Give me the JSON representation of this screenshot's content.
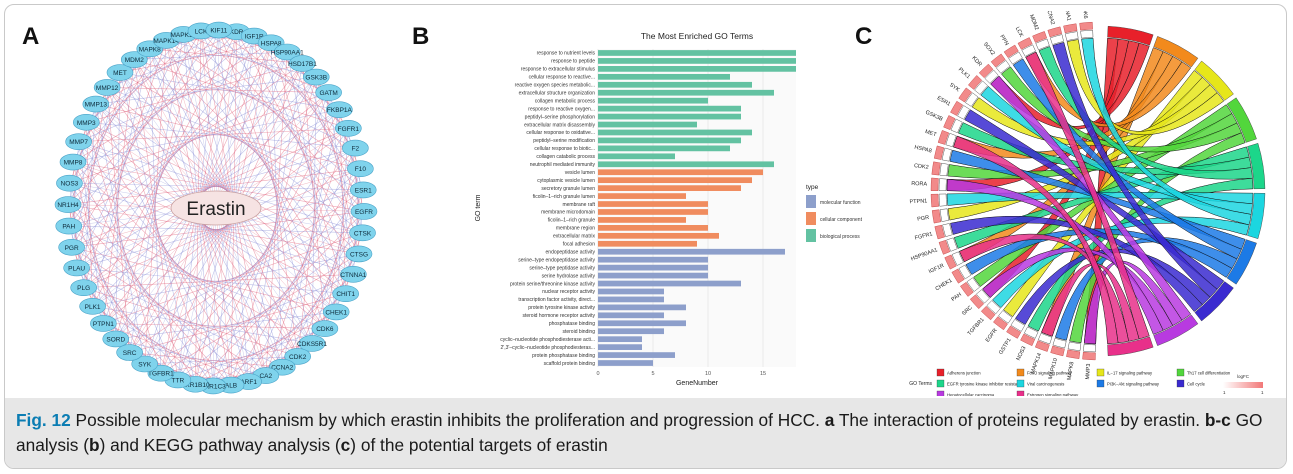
{
  "panels": {
    "a_label": "A",
    "b_label": "B",
    "c_label": "C"
  },
  "network": {
    "center": "Erastin",
    "nodes": [
      "KDR",
      "IGF1R",
      "HSPA8",
      "HSP90AA1",
      "HSD17B1",
      "GSK3B",
      "GATM",
      "FKBP1A",
      "FGFR1",
      "F2",
      "F10",
      "ESR1",
      "EGFR",
      "CTSK",
      "CTSG",
      "CTNNA1",
      "CHIT1",
      "CHEK1",
      "CDK6",
      "CDKS5R1",
      "CDK2",
      "CCNA2",
      "CA2",
      "ARF1",
      "ALB",
      "AKR1C3",
      "AKR1B10",
      "TTR",
      "TGFBR1",
      "SYK",
      "SRC",
      "SORD",
      "PTPN1",
      "PLK1",
      "PLG",
      "PLAU",
      "PGR",
      "PAH",
      "NR1H4",
      "NOS3",
      "MMP8",
      "MMP7",
      "MMP3",
      "MMP13",
      "MMP12",
      "MET",
      "MDM2",
      "MAPK8",
      "MAPK14",
      "MAPK10",
      "LCK",
      "KIF11"
    ],
    "node_color": "#7fd3ec",
    "node_border": "#4aa3c8",
    "center_color": "#f6e3e3",
    "edge_colors": [
      "#e0607a",
      "#8a8ed6"
    ]
  },
  "chart_data": {
    "type": "bar",
    "orientation": "horizontal",
    "title": "The Most Enriched GO Terms",
    "xlabel": "GeneNumber",
    "ylabel": "GO term",
    "xlim": [
      0,
      18
    ],
    "xticks": [
      0,
      5,
      10,
      15
    ],
    "grid": true,
    "legend": {
      "title": "type",
      "placement": "right",
      "entries": [
        {
          "name": "molecular function",
          "color": "#8d9fcb"
        },
        {
          "name": "cellular component",
          "color": "#f08c5f"
        },
        {
          "name": "biological process",
          "color": "#63c2a2"
        }
      ]
    },
    "categories": [
      "response to nutrient levels",
      "response to peptide",
      "response to extracellular stimulus",
      "cellular response to reactive...",
      "reactive oxygen species metabolic...",
      "extracellular structure organization",
      "collagen metabolic process",
      "response to reactive oxygen...",
      "peptidyl–serine phosphorylation",
      "extracellular matrix disassembly",
      "cellular response to oxidative...",
      "peptidyl–serine modification",
      "cellular response to biotic...",
      "collagen catabolic process",
      "neutrophil mediated immunity",
      "vesicle lumen",
      "cytoplasmic vesicle lumen",
      "secretory granule lumen",
      "ficolin–1–rich granule lumen",
      "membrane raft",
      "membrane microdomain",
      "ficolin–1–rich granule",
      "membrane region",
      "extracellular matrix",
      "focal adhesion",
      "endopeptidase activity",
      "serine–type endopeptidase activity",
      "serine–type peptidase activity",
      "serine hydrolase activity",
      "protein serine/threonine kinase activity",
      "nuclear receptor activity",
      "transcription factor activity, direct...",
      "protein tyrosine kinase activity",
      "steroid hormone receptor activity",
      "phosphatase binding",
      "steroid binding",
      "cyclic–nucleotide phosphodiesterase acti...",
      "2',3'–cyclic–nucleotide phosphodiesteras...",
      "protein phosphatase binding",
      "scaffold protein binding"
    ],
    "values": [
      18,
      18,
      18,
      12,
      14,
      16,
      10,
      13,
      13,
      9,
      14,
      13,
      12,
      7,
      16,
      15,
      14,
      13,
      8,
      10,
      10,
      8,
      10,
      11,
      9,
      17,
      10,
      10,
      10,
      13,
      6,
      6,
      8,
      6,
      8,
      6,
      4,
      4,
      7,
      5
    ],
    "types": [
      "biological process",
      "biological process",
      "biological process",
      "biological process",
      "biological process",
      "biological process",
      "biological process",
      "biological process",
      "biological process",
      "biological process",
      "biological process",
      "biological process",
      "biological process",
      "biological process",
      "biological process",
      "cellular component",
      "cellular component",
      "cellular component",
      "cellular component",
      "cellular component",
      "cellular component",
      "cellular component",
      "cellular component",
      "cellular component",
      "cellular component",
      "molecular function",
      "molecular function",
      "molecular function",
      "molecular function",
      "molecular function",
      "molecular function",
      "molecular function",
      "molecular function",
      "molecular function",
      "molecular function",
      "molecular function",
      "molecular function",
      "molecular function",
      "molecular function",
      "molecular function"
    ]
  },
  "chord": {
    "genes": [
      "MMP3",
      "MAPK8",
      "MAPK10",
      "MAPK14",
      "NOS3",
      "GSTP1",
      "EGFR",
      "TGFBR1",
      "SRC",
      "PAH",
      "CHEK1",
      "IGF1R",
      "HSP90AA1",
      "FGFR1",
      "PGR",
      "PTPN1",
      "RORA",
      "CDK2",
      "HSPA8",
      "MET",
      "GSK3B",
      "ESR1",
      "SYK",
      "PLK1",
      "KDR",
      "SOX2",
      "PPN",
      "LCK",
      "MDM2",
      "CCNA2",
      "CTNNA1",
      "CDK6"
    ],
    "pathways": [
      {
        "name": "Adherens junction",
        "color": "#e8202a"
      },
      {
        "name": "FoxO signaling pathway",
        "color": "#f28a1c"
      },
      {
        "name": "IL−17 signaling pathway",
        "color": "#e6e61a"
      },
      {
        "name": "Th17 cell differentiation",
        "color": "#52d63c"
      },
      {
        "name": "EGFR tyrosine kinase inhibitor resistance",
        "color": "#1cd68a"
      },
      {
        "name": "Viral carcinogenesis",
        "color": "#1cd6e0"
      },
      {
        "name": "PI3K−Akt signaling pathway",
        "color": "#1c7ae6"
      },
      {
        "name": "Cell cycle",
        "color": "#3a2ad0"
      },
      {
        "name": "Hepatocellular carcinoma",
        "color": "#b83ae0"
      },
      {
        "name": "Estrogen signaling pathway",
        "color": "#e8308a"
      }
    ],
    "legend_title": "GO Terms",
    "logfc_title": "logFC",
    "logfc_min": "1",
    "logfc_max": "1"
  },
  "caption": {
    "fig_label": "Fig. 12",
    "title": " Possible molecular mechanism by which erastin inhibits the proliferation and progression of HCC. ",
    "a_letter": "a",
    "a_text": " The interaction of proteins regulated by erastin. ",
    "bc_letters": "b-c",
    "bc_text": " GO analysis (",
    "b_letter": "b",
    "mid_text": ") and KEGG pathway analysis (",
    "c_letter": "c",
    "end_text": ") of the potential targets of erastin"
  }
}
